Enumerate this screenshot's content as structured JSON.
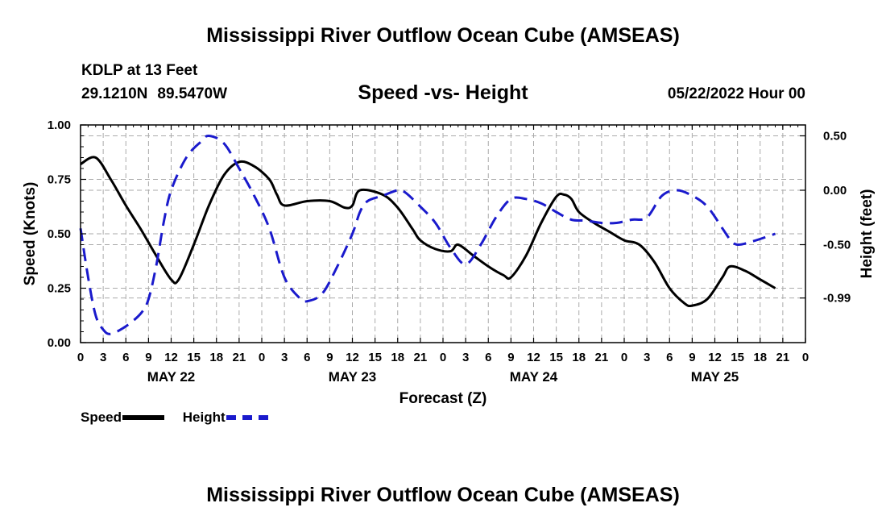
{
  "header": {
    "title": "Mississippi River Outflow Ocean Cube (AMSEAS)",
    "station": "KDLP at 13 Feet",
    "lat": "29.1210N",
    "lon": "89.5470W",
    "subtitle": "Speed -vs- Height",
    "datetime": "05/22/2022 Hour 00"
  },
  "footer": {
    "title": "Mississippi River Outflow Ocean Cube (AMSEAS)"
  },
  "legend": {
    "speed_label": "Speed",
    "height_label": "Height",
    "speed_color": "#000000",
    "height_color": "#1a1acc"
  },
  "chart_data": {
    "type": "line",
    "title": "Speed -vs- Height",
    "xlabel": "Forecast (Z)",
    "ylabel": "Speed (Knots)",
    "y2label": "Height (feet)",
    "x_range_hours": [
      0,
      96
    ],
    "ylim": [
      0,
      1.0
    ],
    "y2lim": [
      -1.4,
      0.6
    ],
    "yticks": [
      "0.00",
      "0.25",
      "0.50",
      "0.75",
      "1.00"
    ],
    "y2ticks": [
      {
        "value": 0.5,
        "label": "0.50"
      },
      {
        "value": 0.0,
        "label": "0.00"
      },
      {
        "value": -0.5,
        "label": "-0.50"
      },
      {
        "value": -0.99,
        "label": "-0.99"
      }
    ],
    "xtick_labels": [
      "0",
      "3",
      "6",
      "9",
      "12",
      "15",
      "18",
      "21",
      "0",
      "3",
      "6",
      "9",
      "12",
      "15",
      "18",
      "21",
      "0",
      "3",
      "6",
      "9",
      "12",
      "15",
      "18",
      "21",
      "0",
      "3",
      "6",
      "9",
      "12",
      "15",
      "18",
      "21",
      "0"
    ],
    "day_labels": [
      {
        "label": "MAY 22",
        "hour": 12
      },
      {
        "label": "MAY 23",
        "hour": 36
      },
      {
        "label": "MAY 24",
        "hour": 60
      },
      {
        "label": "MAY 25",
        "hour": 84
      }
    ],
    "grid": true,
    "series": [
      {
        "name": "Speed",
        "axis": "left",
        "color": "#000000",
        "style": "solid",
        "points": [
          [
            0,
            0.82
          ],
          [
            2,
            0.85
          ],
          [
            4,
            0.75
          ],
          [
            6,
            0.63
          ],
          [
            8,
            0.52
          ],
          [
            10,
            0.4
          ],
          [
            12,
            0.29
          ],
          [
            13,
            0.29
          ],
          [
            15,
            0.45
          ],
          [
            17,
            0.63
          ],
          [
            19,
            0.77
          ],
          [
            21,
            0.83
          ],
          [
            23,
            0.81
          ],
          [
            25,
            0.75
          ],
          [
            26,
            0.68
          ],
          [
            27,
            0.63
          ],
          [
            30,
            0.65
          ],
          [
            33,
            0.65
          ],
          [
            35,
            0.62
          ],
          [
            36,
            0.63
          ],
          [
            37,
            0.7
          ],
          [
            40,
            0.68
          ],
          [
            42,
            0.62
          ],
          [
            44,
            0.52
          ],
          [
            45,
            0.47
          ],
          [
            47,
            0.43
          ],
          [
            49,
            0.42
          ],
          [
            50,
            0.45
          ],
          [
            52,
            0.4
          ],
          [
            54,
            0.35
          ],
          [
            56,
            0.31
          ],
          [
            57,
            0.3
          ],
          [
            59,
            0.4
          ],
          [
            61,
            0.55
          ],
          [
            63,
            0.67
          ],
          [
            64,
            0.68
          ],
          [
            65,
            0.66
          ],
          [
            66,
            0.6
          ],
          [
            68,
            0.55
          ],
          [
            70,
            0.51
          ],
          [
            72,
            0.47
          ],
          [
            74,
            0.45
          ],
          [
            76,
            0.37
          ],
          [
            78,
            0.25
          ],
          [
            80,
            0.18
          ],
          [
            81,
            0.17
          ],
          [
            83,
            0.2
          ],
          [
            85,
            0.3
          ],
          [
            86,
            0.35
          ],
          [
            88,
            0.33
          ],
          [
            90,
            0.29
          ],
          [
            92,
            0.25
          ]
        ]
      },
      {
        "name": "Height",
        "axis": "right",
        "color": "#1a1acc",
        "style": "dashed",
        "points": [
          [
            0,
            -0.35
          ],
          [
            1,
            -0.8
          ],
          [
            2,
            -1.15
          ],
          [
            3,
            -1.28
          ],
          [
            4,
            -1.32
          ],
          [
            6,
            -1.25
          ],
          [
            8,
            -1.13
          ],
          [
            9,
            -1.0
          ],
          [
            10,
            -0.7
          ],
          [
            11,
            -0.3
          ],
          [
            12,
            0.0
          ],
          [
            14,
            0.3
          ],
          [
            16,
            0.45
          ],
          [
            17,
            0.5
          ],
          [
            19,
            0.43
          ],
          [
            21,
            0.2
          ],
          [
            23,
            -0.05
          ],
          [
            25,
            -0.35
          ],
          [
            27,
            -0.8
          ],
          [
            29,
            -0.99
          ],
          [
            30,
            -1.02
          ],
          [
            32,
            -0.95
          ],
          [
            34,
            -0.7
          ],
          [
            36,
            -0.4
          ],
          [
            37,
            -0.2
          ],
          [
            38,
            -0.1
          ],
          [
            40,
            -0.05
          ],
          [
            42,
            0.0
          ],
          [
            43,
            -0.02
          ],
          [
            45,
            -0.15
          ],
          [
            47,
            -0.3
          ],
          [
            49,
            -0.53
          ],
          [
            51,
            -0.68
          ],
          [
            53,
            -0.5
          ],
          [
            55,
            -0.25
          ],
          [
            57,
            -0.08
          ],
          [
            59,
            -0.08
          ],
          [
            61,
            -0.12
          ],
          [
            63,
            -0.2
          ],
          [
            65,
            -0.27
          ],
          [
            67,
            -0.28
          ],
          [
            69,
            -0.3
          ],
          [
            71,
            -0.3
          ],
          [
            73,
            -0.27
          ],
          [
            75,
            -0.25
          ],
          [
            77,
            -0.05
          ],
          [
            79,
            0.0
          ],
          [
            81,
            -0.05
          ],
          [
            83,
            -0.15
          ],
          [
            85,
            -0.35
          ],
          [
            86,
            -0.45
          ],
          [
            87,
            -0.5
          ],
          [
            89,
            -0.47
          ],
          [
            92,
            -0.4
          ]
        ]
      }
    ]
  }
}
